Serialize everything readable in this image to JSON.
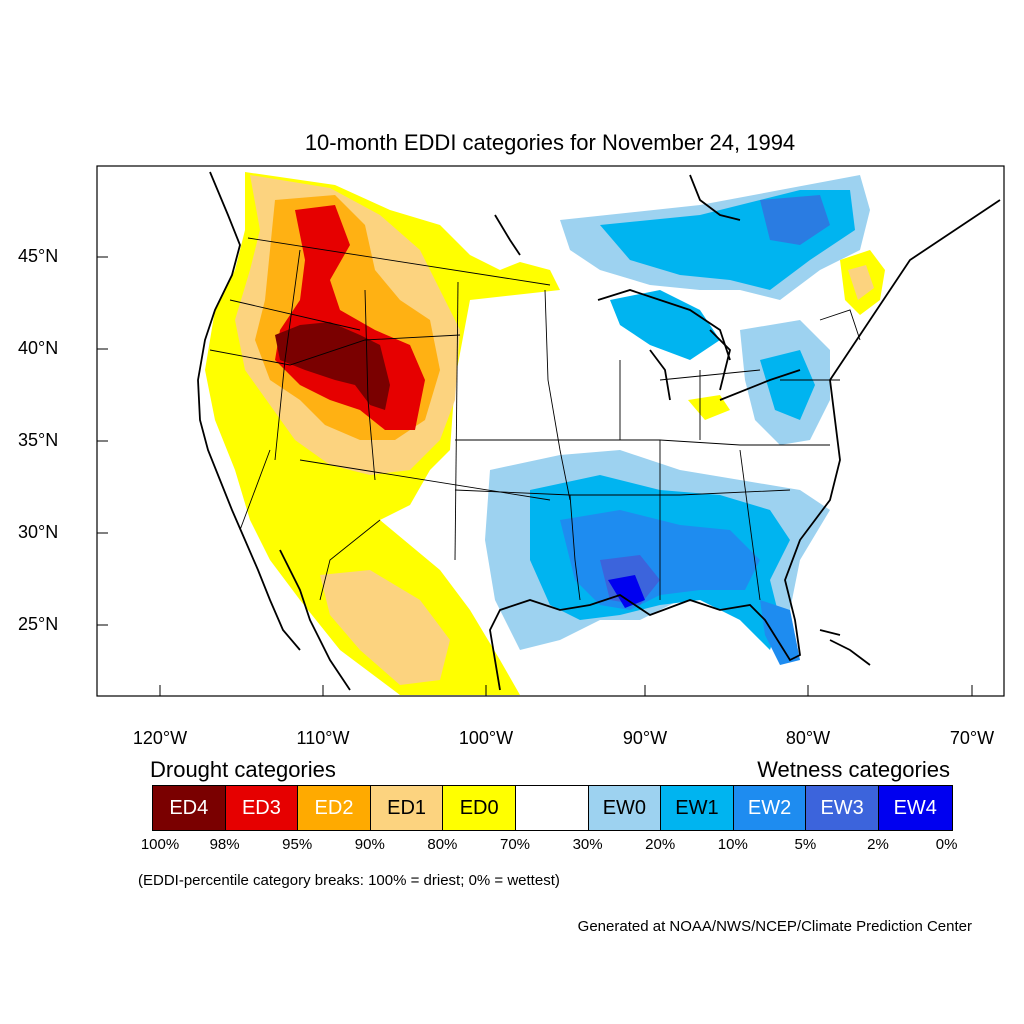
{
  "title": "10-month EDDI categories for November 24, 1994",
  "axes": {
    "lat_labels": [
      "45°N",
      "40°N",
      "35°N",
      "30°N",
      "25°N"
    ],
    "lon_labels": [
      "120°W",
      "110°W",
      "100°W",
      "90°W",
      "80°W",
      "70°W"
    ]
  },
  "legend": {
    "drought_heading": "Drought categories",
    "wetness_heading": "Wetness categories",
    "categories": [
      {
        "label": "ED4",
        "color": "#7a0000",
        "text_color": "#ffffff"
      },
      {
        "label": "ED3",
        "color": "#e60000",
        "text_color": "#ffffff"
      },
      {
        "label": "ED2",
        "color": "#ffaa00",
        "text_color": "#ffffff"
      },
      {
        "label": "ED1",
        "color": "#fcd37f",
        "text_color": "#000000"
      },
      {
        "label": "ED0",
        "color": "#ffff00",
        "text_color": "#000000"
      },
      {
        "label": "",
        "color": "#ffffff",
        "text_color": "#000000"
      },
      {
        "label": "EW0",
        "color": "#9dd2f0",
        "text_color": "#000000"
      },
      {
        "label": "EW1",
        "color": "#00b4f0",
        "text_color": "#000000"
      },
      {
        "label": "EW2",
        "color": "#1e8cf0",
        "text_color": "#ffffff"
      },
      {
        "label": "EW3",
        "color": "#3c64dc",
        "text_color": "#ffffff"
      },
      {
        "label": "EW4",
        "color": "#0000f0",
        "text_color": "#ffffff"
      }
    ],
    "percentiles": [
      "100%",
      "98%",
      "95%",
      "90%",
      "80%",
      "70%",
      "30%",
      "20%",
      "10%",
      "5%",
      "2%",
      "0%"
    ]
  },
  "note": "(EDDI-percentile category breaks: 100% = driest; 0% = wettest)",
  "credit": "Generated at NOAA/NWS/NCEP/Climate Prediction Center"
}
